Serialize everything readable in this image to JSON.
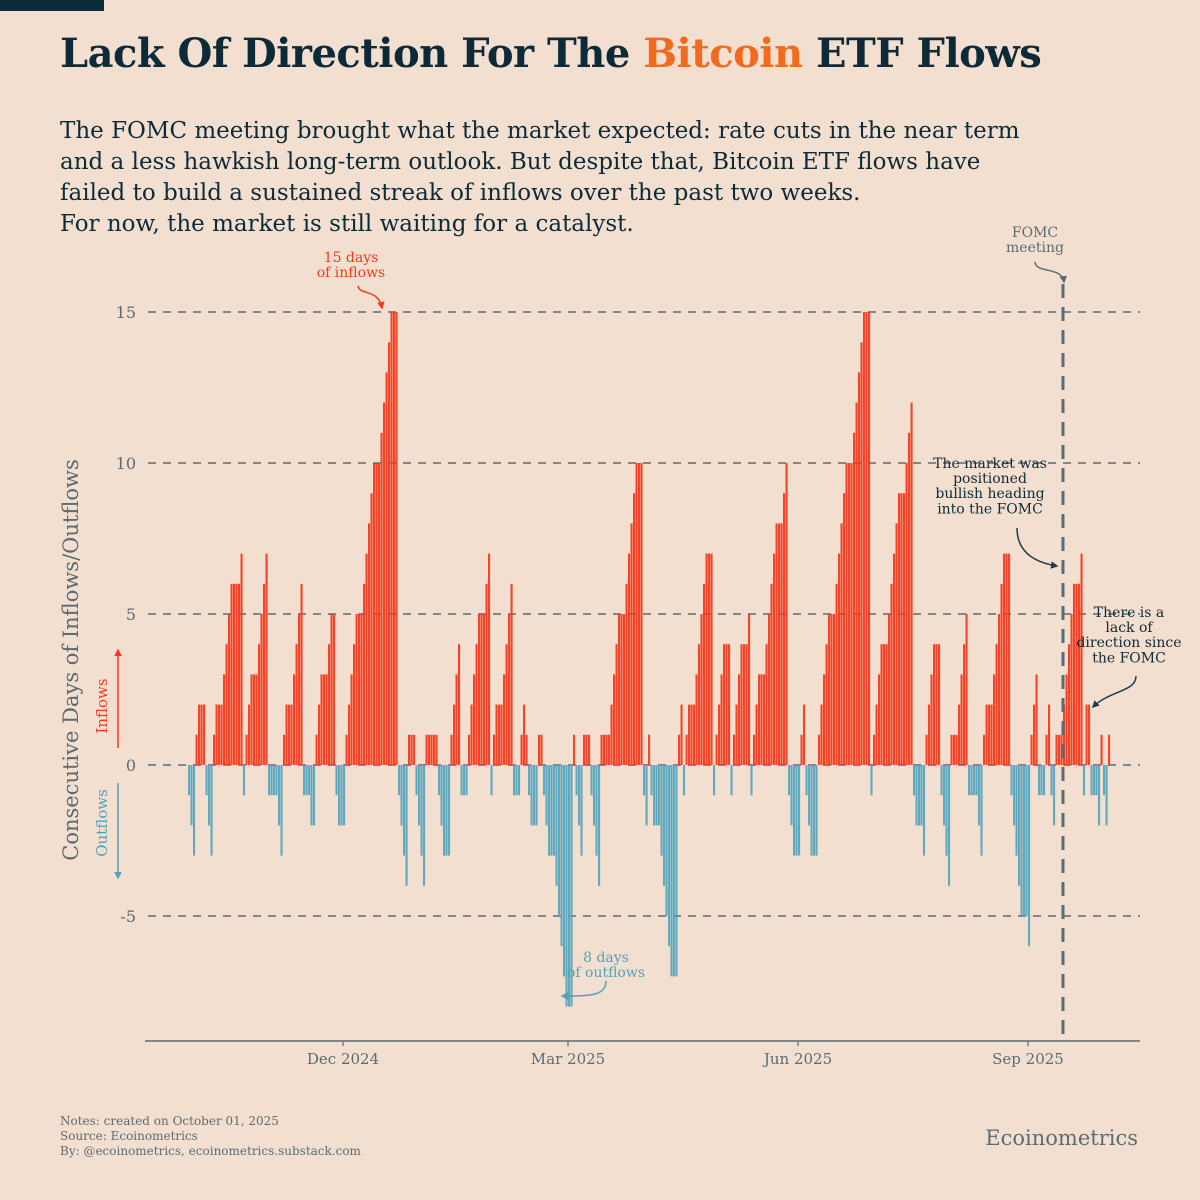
{
  "header": {
    "title_pre": "Lack Of Direction For The ",
    "title_accent": "Bitcoin",
    "title_post": " ETF Flows",
    "subtitle_lines": [
      "The FOMC meeting brought what the market expected: rate cuts in the near term",
      "and a less hawkish long-term outlook. But despite that, Bitcoin ETF flows have",
      "failed to build a sustained streak of inflows over the past two weeks.",
      "For now, the market is still waiting for a catalyst."
    ]
  },
  "colors": {
    "background": "#f3dfd0",
    "title": "#0d2a38",
    "accent": "#f26a1b",
    "inflow": "#f23a1f",
    "outflow": "#4fa3bb",
    "grid": "#5b6b73"
  },
  "chart_data": {
    "type": "bar",
    "title": "Lack Of Direction For The Bitcoin ETF Flows",
    "xlabel": "",
    "ylabel": "Consecutive Days of Inflows/Outflows",
    "ylim": [
      -9,
      16.5
    ],
    "yticks": [
      -5,
      0,
      5,
      10,
      15
    ],
    "ytick_labels": [
      "-5",
      "0",
      "5",
      "10",
      "15"
    ],
    "grid": "horizontal dashed",
    "x_start": "2024-09-30",
    "x_end": "2025-10-05",
    "xticks": [
      {
        "date": "2024-12-01",
        "label": "Dec 2024"
      },
      {
        "date": "2025-03-01",
        "label": "Mar 2025"
      },
      {
        "date": "2025-06-01",
        "label": "Jun 2025"
      },
      {
        "date": "2025-09-01",
        "label": "Sep 2025"
      }
    ],
    "series_note": "Trading-day streak values; weekends carry the previous value forward",
    "start_date": "2024-09-30",
    "values": [
      -1,
      -2,
      -3,
      1,
      2,
      -1,
      -2,
      -3,
      1,
      2,
      3,
      4,
      5,
      6,
      6,
      7,
      -1,
      1,
      2,
      3,
      4,
      5,
      6,
      7,
      -1,
      -1,
      -2,
      -3,
      1,
      2,
      3,
      4,
      5,
      6,
      -1,
      -2,
      -2,
      1,
      2,
      3,
      4,
      5,
      5,
      -1,
      -2,
      1,
      2,
      3,
      4,
      5,
      6,
      7,
      8,
      9,
      10,
      11,
      12,
      13,
      14,
      15,
      -1,
      -2,
      -3,
      -4,
      1,
      -1,
      -2,
      -3,
      -4,
      1,
      1,
      1,
      -1,
      -2,
      -3,
      1,
      2,
      3,
      4,
      -1,
      1,
      2,
      3,
      4,
      5,
      6,
      7,
      -1,
      1,
      2,
      3,
      4,
      5,
      6,
      -1,
      1,
      2,
      1,
      -1,
      -2,
      1,
      1,
      -1,
      -2,
      -3,
      -4,
      -5,
      -6,
      -7,
      -8,
      1,
      -1,
      -2,
      -3,
      1,
      -1,
      -2,
      -3,
      -4,
      1,
      1,
      2,
      3,
      4,
      5,
      6,
      7,
      8,
      9,
      10,
      -1,
      -2,
      1,
      -1,
      -2,
      -3,
      -4,
      -5,
      -6,
      -7,
      1,
      2,
      -1,
      1,
      2,
      3,
      4,
      5,
      6,
      7,
      -1,
      1,
      2,
      3,
      4,
      -1,
      1,
      2,
      3,
      4,
      5,
      -1,
      1,
      2,
      3,
      4,
      5,
      6,
      7,
      8,
      9,
      10,
      -1,
      -2,
      -3,
      1,
      2,
      -1,
      -2,
      -3,
      1,
      2,
      3,
      4,
      5,
      6,
      7,
      8,
      9,
      10,
      11,
      12,
      13,
      14,
      15,
      -1,
      1,
      2,
      3,
      4,
      5,
      6,
      7,
      8,
      9,
      10,
      11,
      12,
      -1,
      -2,
      -3,
      1,
      2,
      3,
      4,
      -1,
      -2,
      -3,
      -4,
      1,
      2,
      3,
      4,
      5,
      -1,
      -1,
      -2,
      -3,
      1,
      2,
      3,
      4,
      5,
      6,
      7,
      -1,
      -2,
      -3,
      -4,
      -5,
      -6,
      1,
      2,
      3,
      -1,
      1,
      2,
      -1,
      -2,
      1,
      2,
      3,
      4,
      5,
      6,
      7,
      -1,
      2,
      2,
      -1,
      -2,
      1,
      -1,
      -2,
      1
    ],
    "annotations": [
      {
        "text": "15 days\nof inflows",
        "date": "2024-12-17",
        "value": 15,
        "color": "inflow"
      },
      {
        "text": "8 days\nof outflows",
        "date": "2025-02-26",
        "value": -8,
        "color": "outflow"
      },
      {
        "text": "FOMC\nmeeting",
        "date": "2025-09-17",
        "type": "vline"
      },
      {
        "text": "The market was\npositioned\nbullish heading\ninto the FOMC",
        "date": "2025-09-16",
        "value": 7
      },
      {
        "text": "There is a\nlack of\ndirection since\nthe FOMC",
        "date": "2025-09-25",
        "value": 2
      }
    ],
    "axis_legend": {
      "inflows_label": "Inflows",
      "outflows_label": "Outflows"
    }
  },
  "footer": {
    "notes": "Notes: created on October 01, 2025",
    "source": "Source: Ecoinometrics",
    "by": "By: @ecoinometrics, ecoinometrics.substack.com",
    "brand": "Ecoinometrics"
  }
}
